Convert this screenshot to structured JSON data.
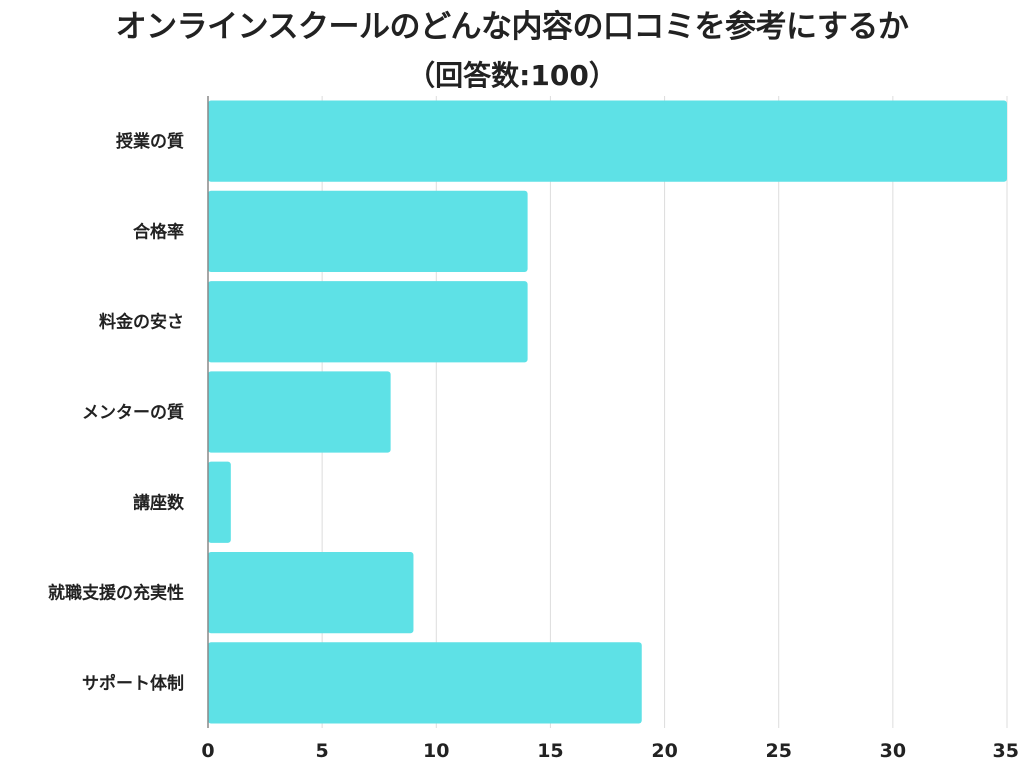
{
  "chart_data": {
    "type": "bar",
    "orientation": "horizontal",
    "title": "オンラインスクールのどんな内容の口コミを参考にするか",
    "subtitle": "（回答数:100）",
    "categories": [
      "授業の質",
      "合格率",
      "料金の安さ",
      "メンターの質",
      "講座数",
      "就職支援の充実性",
      "サポート体制"
    ],
    "values": [
      35,
      14,
      14,
      8,
      1,
      9,
      19
    ],
    "xticks": [
      "0",
      "5",
      "10",
      "15",
      "20",
      "25",
      "30",
      "35"
    ],
    "xlim": [
      0,
      35
    ],
    "grid": true,
    "legend": "none",
    "bar_color": "#5ee1e6",
    "grid_color": "#dddddd",
    "axis_color": "#888888"
  }
}
